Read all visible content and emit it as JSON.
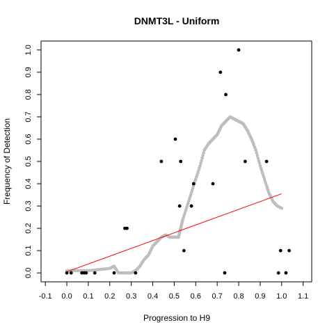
{
  "chart_data": {
    "type": "scatter",
    "title": "DNMT3L - Uniform",
    "xlabel": "Progression to H9",
    "ylabel": "Frequency of Detection",
    "xlim": [
      -0.12,
      1.14
    ],
    "ylim": [
      -0.04,
      1.04
    ],
    "xticks": [
      -0.1,
      0.0,
      0.1,
      0.2,
      0.3,
      0.4,
      0.5,
      0.6,
      0.7,
      0.8,
      0.9,
      1.0,
      1.1
    ],
    "xtick_labels": [
      "-0.1",
      "0.0",
      "0.1",
      "0.2",
      "0.3",
      "0.4",
      "0.5",
      "0.6",
      "0.7",
      "0.8",
      "0.9",
      "1.0",
      "1.1"
    ],
    "yticks": [
      0.0,
      0.1,
      0.2,
      0.3,
      0.4,
      0.5,
      0.6,
      0.7,
      0.8,
      0.9,
      1.0
    ],
    "ytick_labels": [
      "0.0",
      "0.1",
      "0.2",
      "0.3",
      "0.4",
      "0.5",
      "0.6",
      "0.7",
      "0.8",
      "0.9",
      "1.0"
    ],
    "grid": false,
    "colors": {
      "points": "#000000",
      "smooth": "#bebebe",
      "fit": "#ff0000"
    },
    "series": [
      {
        "kind": "points",
        "x": [
          0.0,
          0.02,
          0.07,
          0.08,
          0.09,
          0.13,
          0.22,
          0.27,
          0.28,
          0.32,
          0.44,
          0.505,
          0.525,
          0.53,
          0.545,
          0.58,
          0.59,
          0.68,
          0.715,
          0.735,
          0.74,
          0.8,
          0.83,
          0.93,
          0.985,
          0.995,
          1.02,
          1.035
        ],
        "y": [
          0.0,
          0.0,
          0.0,
          0.0,
          0.0,
          0.0,
          0.0,
          0.2,
          0.2,
          0.0,
          0.5,
          0.6,
          0.3,
          0.5,
          0.1,
          0.3,
          0.4,
          0.4,
          0.9,
          0.0,
          0.8,
          1.0,
          0.5,
          0.5,
          0.0,
          0.1,
          0.0,
          0.1
        ]
      },
      {
        "kind": "smooth",
        "x": [
          0.0,
          0.05,
          0.1,
          0.15,
          0.2,
          0.22,
          0.24,
          0.28,
          0.3,
          0.32,
          0.34,
          0.36,
          0.38,
          0.4,
          0.42,
          0.44,
          0.46,
          0.48,
          0.5,
          0.52,
          0.53,
          0.54,
          0.56,
          0.58,
          0.6,
          0.62,
          0.64,
          0.66,
          0.68,
          0.7,
          0.72,
          0.74,
          0.76,
          0.78,
          0.8,
          0.82,
          0.84,
          0.86,
          0.88,
          0.9,
          0.92,
          0.94,
          0.96,
          0.98,
          1.0
        ],
        "y": [
          0.01,
          0.01,
          0.01,
          0.015,
          0.02,
          0.03,
          0.0,
          0.0,
          0.0,
          0.01,
          0.03,
          0.06,
          0.08,
          0.12,
          0.14,
          0.16,
          0.17,
          0.16,
          0.16,
          0.16,
          0.2,
          0.24,
          0.3,
          0.36,
          0.42,
          0.48,
          0.55,
          0.58,
          0.6,
          0.62,
          0.66,
          0.68,
          0.7,
          0.69,
          0.68,
          0.67,
          0.64,
          0.6,
          0.55,
          0.48,
          0.42,
          0.36,
          0.32,
          0.3,
          0.29
        ]
      },
      {
        "kind": "fit",
        "x": [
          0.0,
          1.0
        ],
        "y": [
          0.005,
          0.355
        ]
      }
    ]
  }
}
